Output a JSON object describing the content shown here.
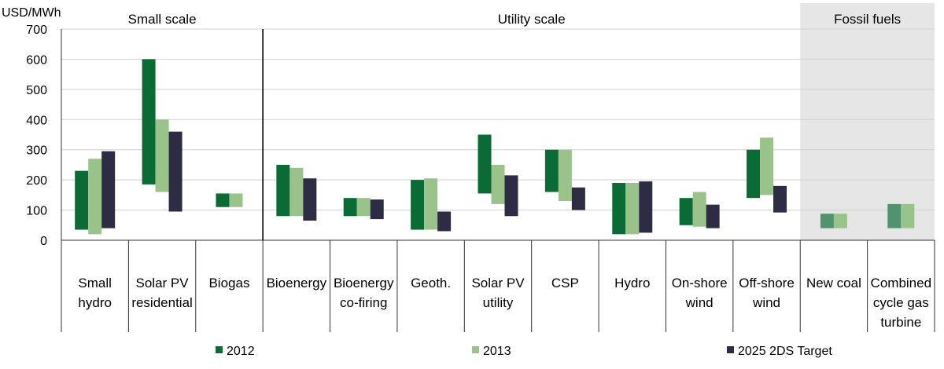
{
  "chart_data": {
    "type": "bar",
    "subtype": "floating-range",
    "unit_label": "USD/MWh",
    "ylim": [
      0,
      700
    ],
    "yticks": [
      0,
      100,
      200,
      300,
      400,
      500,
      600,
      700
    ],
    "grid": true,
    "legend_position": "bottom",
    "groups": [
      {
        "label": "Small scale",
        "categories": [
          0,
          1,
          2
        ],
        "shaded": false
      },
      {
        "label": "Utility scale",
        "categories": [
          3,
          4,
          5,
          6,
          7,
          8,
          9,
          10
        ],
        "shaded": false
      },
      {
        "label": "Fossil fuels",
        "categories": [
          11,
          12
        ],
        "shaded": true,
        "shade_color": "#e6e6e6"
      }
    ],
    "categories": [
      [
        "Small",
        "hydro"
      ],
      [
        "Solar PV",
        "residential"
      ],
      [
        "Biogas"
      ],
      [
        "Bioenergy"
      ],
      [
        "Bioenergy",
        "co-firing"
      ],
      [
        "Geoth."
      ],
      [
        "Solar PV",
        "utility"
      ],
      [
        "CSP"
      ],
      [
        "Hydro"
      ],
      [
        "On-shore",
        "wind"
      ],
      [
        "Off-shore",
        "wind"
      ],
      [
        "New coal"
      ],
      [
        "Combined",
        "cycle gas",
        "turbine"
      ]
    ],
    "series": [
      {
        "name": "2012",
        "color": "#0a6b35",
        "ranges": [
          [
            35,
            230
          ],
          [
            185,
            600
          ],
          [
            110,
            155
          ],
          [
            80,
            250
          ],
          [
            80,
            140
          ],
          [
            35,
            200
          ],
          [
            155,
            350
          ],
          [
            160,
            300
          ],
          [
            20,
            190
          ],
          [
            50,
            140
          ],
          [
            140,
            300
          ],
          null,
          null
        ]
      },
      {
        "name": "2013",
        "color": "#99c38b",
        "ranges": [
          [
            20,
            270
          ],
          [
            160,
            400
          ],
          [
            110,
            155
          ],
          [
            80,
            240
          ],
          [
            80,
            140
          ],
          [
            35,
            205
          ],
          [
            120,
            250
          ],
          [
            130,
            300
          ],
          [
            20,
            190
          ],
          [
            45,
            160
          ],
          [
            150,
            340
          ],
          null,
          null
        ]
      },
      {
        "name": "2025 2DS Target",
        "color": "#2e2b45",
        "ranges": [
          [
            40,
            295
          ],
          [
            95,
            360
          ],
          null,
          [
            65,
            205
          ],
          [
            70,
            135
          ],
          [
            30,
            95
          ],
          [
            80,
            215
          ],
          [
            100,
            175
          ],
          [
            25,
            195
          ],
          [
            40,
            118
          ],
          [
            92,
            180
          ],
          null,
          null
        ]
      },
      {
        "name": "Fossil fuels",
        "color": "#50936e",
        "ranges": [
          null,
          null,
          null,
          null,
          null,
          null,
          null,
          null,
          null,
          null,
          null,
          [
            40,
            88
          ],
          [
            40,
            120
          ]
        ],
        "in_legend": false
      }
    ],
    "fossil_light_color": "#99c38b"
  }
}
